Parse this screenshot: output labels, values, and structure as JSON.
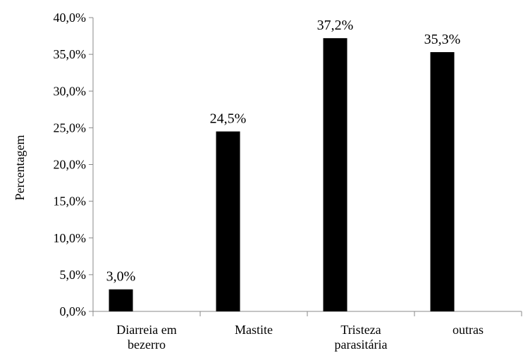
{
  "chart_data": {
    "type": "bar",
    "categories": [
      [
        "Diarreia em",
        "bezerro"
      ],
      [
        "Mastite"
      ],
      [
        "Tristeza",
        "parasitária"
      ],
      [
        "outras"
      ]
    ],
    "values": [
      3.0,
      24.5,
      37.2,
      35.3
    ],
    "data_labels": [
      "3,0%",
      "24,5%",
      "37,2%",
      "35,3%"
    ],
    "ylabel": "Percentagem",
    "ylim": [
      0,
      40
    ],
    "yticks": [
      0,
      5,
      10,
      15,
      20,
      25,
      30,
      35,
      40
    ],
    "ytick_labels": [
      "0,0%",
      "5,0%",
      "10,0%",
      "15,0%",
      "20,0%",
      "25,0%",
      "30,0%",
      "35,0%",
      "40,0%"
    ],
    "bar_color": "#000000",
    "grid": false,
    "legend": "none"
  }
}
